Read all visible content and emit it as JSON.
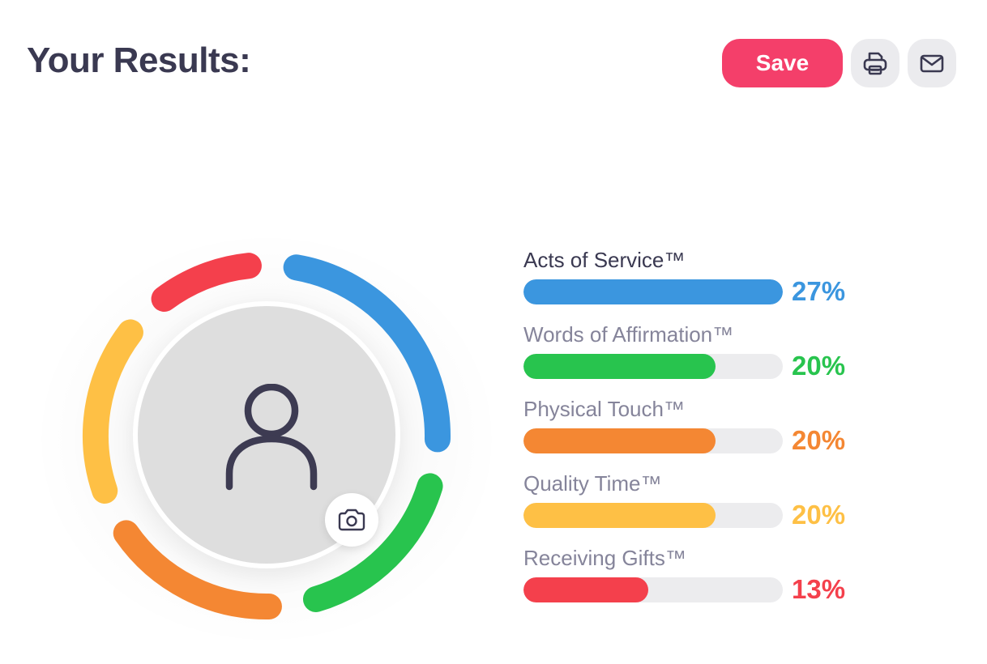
{
  "header": {
    "title": "Your Results:",
    "save_label": "Save",
    "print_icon": "printer-icon",
    "email_icon": "envelope-icon"
  },
  "avatar": {
    "placeholder_icon": "person-icon",
    "camera_icon": "camera-icon"
  },
  "results": [
    {
      "label": "Acts of Service™",
      "percent_text": "27%",
      "value": 27,
      "color": "#3b96df"
    },
    {
      "label": "Words of Affirmation™",
      "percent_text": "20%",
      "value": 20,
      "color": "#28c44e"
    },
    {
      "label": "Physical Touch™",
      "percent_text": "20%",
      "value": 20,
      "color": "#f48733"
    },
    {
      "label": "Quality Time™",
      "percent_text": "20%",
      "value": 20,
      "color": "#fec045"
    },
    {
      "label": "Receiving Gifts™",
      "percent_text": "13%",
      "value": 13,
      "color": "#f4404c"
    }
  ]
}
